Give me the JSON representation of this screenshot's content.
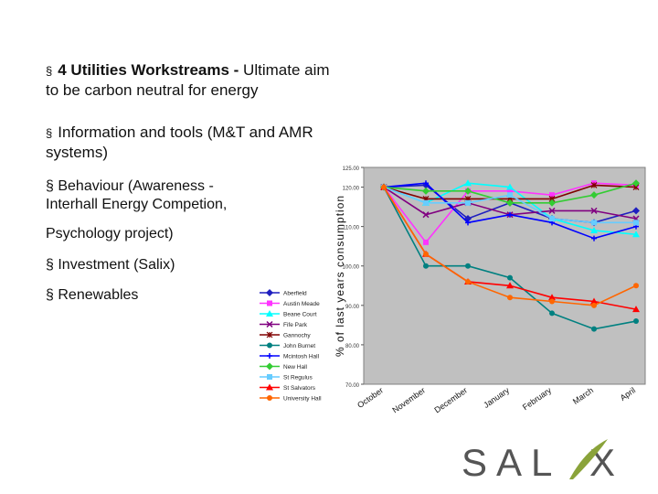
{
  "bullets": [
    {
      "bold": "4 Utilities Workstreams -",
      "rest": " Ultimate aim",
      "line2": "to be carbon neutral for energy"
    },
    {
      "text": "Information and tools (M&T and AMR",
      "line2": "systems)"
    }
  ],
  "sub_bullets": [
    {
      "line1": "Behaviour (Awareness  -",
      "line2": "Interhall Energy Competion,"
    },
    {
      "text": "Psychology project)"
    },
    {
      "text": "Investment (Salix)"
    },
    {
      "text": "Renewables"
    }
  ],
  "bullet_symbol": "§",
  "logo": {
    "text": "SAL X",
    "letters": [
      "S",
      "A",
      "L",
      "X"
    ],
    "leaf_color": "#8aa33a",
    "text_color": "#555555"
  },
  "chart_data": {
    "type": "line",
    "ylabel": "% of last years consumption",
    "ylim": [
      70,
      125
    ],
    "yticks": [
      70,
      80,
      90,
      100,
      110,
      120,
      125
    ],
    "ytick_labels": [
      "70.00",
      "80.00",
      "90.00",
      "100.00",
      "110.00",
      "120.00",
      "125.00"
    ],
    "categories": [
      "October",
      "November",
      "December",
      "January",
      "February",
      "March",
      "April"
    ],
    "plot_background": "#c0c0c0",
    "series": [
      {
        "name": "Aberfield",
        "color": "#1f1fbf",
        "marker": "diamond",
        "values": [
          120,
          120.5,
          112,
          116,
          112,
          111,
          114
        ]
      },
      {
        "name": "Austin Meade",
        "color": "#ff33ff",
        "marker": "square",
        "values": [
          120,
          106,
          119,
          119,
          118,
          121,
          120.5
        ]
      },
      {
        "name": "Beane Court",
        "color": "#00ffff",
        "marker": "triangle",
        "values": [
          120,
          116,
          121,
          120,
          112,
          109,
          108
        ]
      },
      {
        "name": "Fife Park",
        "color": "#800080",
        "marker": "x",
        "values": [
          120,
          113,
          116,
          113,
          114,
          114,
          112
        ]
      },
      {
        "name": "Gannochy",
        "color": "#800000",
        "marker": "star",
        "values": [
          120,
          117,
          117,
          117,
          117,
          120.5,
          120
        ]
      },
      {
        "name": "John Burnet",
        "color": "#008080",
        "marker": "circle",
        "values": [
          120,
          100,
          100,
          97,
          88,
          84,
          86
        ]
      },
      {
        "name": "Mcintosh Hall",
        "color": "#0000ff",
        "marker": "plus",
        "values": [
          120,
          121,
          111,
          113,
          111,
          107,
          110
        ]
      },
      {
        "name": "New Hall",
        "color": "#33cc33",
        "marker": "diamond",
        "values": [
          120,
          119,
          119,
          116,
          116,
          118,
          121
        ]
      },
      {
        "name": "St Regulus",
        "color": "#66ccff",
        "marker": "square",
        "values": [
          120,
          116,
          116,
          118,
          112,
          111,
          111
        ]
      },
      {
        "name": "St Salvators",
        "color": "#ff0000",
        "marker": "triangle",
        "values": [
          120,
          103,
          96,
          95,
          92,
          91,
          89
        ]
      },
      {
        "name": "University Hall",
        "color": "#ff6600",
        "marker": "circle",
        "values": [
          120,
          103,
          96,
          92,
          91,
          90,
          95
        ]
      }
    ]
  }
}
